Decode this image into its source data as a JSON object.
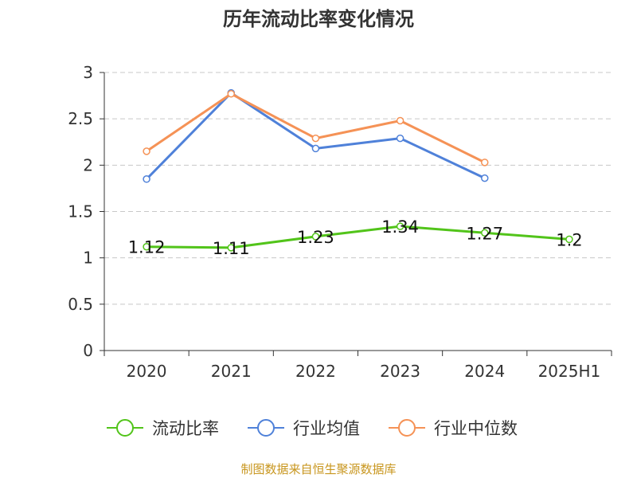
{
  "source_note": "制图数据来自恒生聚源数据库",
  "colors": {
    "source_note": "#c8961e"
  },
  "chart_data": {
    "type": "line",
    "title": "历年流动比率变化情况",
    "categories": [
      "2020",
      "2021",
      "2022",
      "2023",
      "2024",
      "2025H1"
    ],
    "ylim": [
      0,
      3
    ],
    "yticks": [
      "0",
      "0.5",
      "1",
      "1.5",
      "2",
      "2.5",
      "3"
    ],
    "grid": true,
    "legend_position": "bottom",
    "series": [
      {
        "name": "流动比率",
        "color": "#52c41a",
        "values": [
          1.12,
          1.11,
          1.23,
          1.34,
          1.27,
          1.2
        ],
        "labels": [
          "1.12",
          "1.11",
          "1.23",
          "1.34",
          "1.27",
          "1.2"
        ]
      },
      {
        "name": "行业均值",
        "color": "#4f81d9",
        "values": [
          1.85,
          2.78,
          2.18,
          2.29,
          1.86,
          null
        ]
      },
      {
        "name": "行业中位数",
        "color": "#f59256",
        "values": [
          2.15,
          2.77,
          2.29,
          2.48,
          2.03,
          null
        ]
      }
    ]
  }
}
